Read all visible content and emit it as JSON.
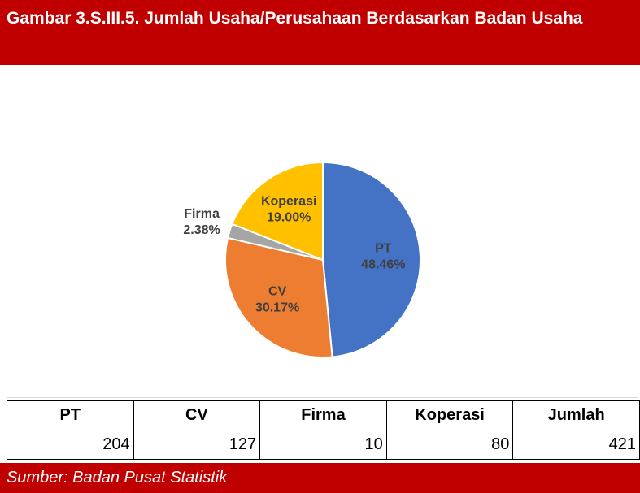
{
  "chart_data": {
    "type": "pie",
    "title": "Gambar 3.S.III.5. Jumlah Usaha/Perusahaan Berdasarkan Badan Usaha",
    "categories": [
      "PT",
      "CV",
      "Firma",
      "Koperasi"
    ],
    "values": [
      48.46,
      30.17,
      2.38,
      19.0
    ],
    "value_labels": [
      "48.46%",
      "30.17%",
      "2.38%",
      "19.00%"
    ],
    "colors": [
      "#4472c4",
      "#ed7d31",
      "#a5a5a5",
      "#ffc000"
    ]
  },
  "table": {
    "header": [
      "PT",
      "CV",
      "Firma",
      "Koperasi",
      "Jumlah"
    ],
    "rows": [
      [
        204,
        127,
        10,
        80,
        421
      ]
    ]
  },
  "source": "Sumber: Badan Pusat Statistik"
}
